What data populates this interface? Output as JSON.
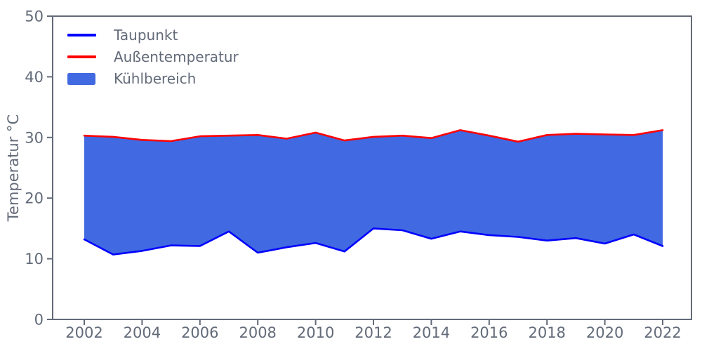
{
  "chart_data": {
    "type": "line",
    "title": "",
    "xlabel": "",
    "ylabel": "Temperatur °C",
    "x": [
      2002,
      2003,
      2004,
      2005,
      2006,
      2007,
      2008,
      2009,
      2010,
      2011,
      2012,
      2013,
      2014,
      2015,
      2016,
      2017,
      2018,
      2019,
      2020,
      2021,
      2022
    ],
    "series": [
      {
        "name": "Taupunkt",
        "color": "#0000ff",
        "values": [
          13.2,
          10.7,
          11.3,
          12.2,
          12.1,
          14.5,
          11.0,
          11.9,
          12.6,
          11.2,
          15.0,
          14.7,
          13.3,
          14.5,
          13.9,
          13.6,
          13.0,
          13.4,
          12.5,
          14.0,
          12.1
        ]
      },
      {
        "name": "Außentemperatur",
        "color": "#ff0000",
        "values": [
          30.3,
          30.1,
          29.6,
          29.4,
          30.2,
          30.3,
          30.4,
          29.8,
          30.8,
          29.5,
          30.1,
          30.3,
          29.9,
          31.2,
          30.3,
          29.3,
          30.4,
          30.6,
          30.5,
          30.4,
          31.2
        ]
      }
    ],
    "area": {
      "name": "Kühlbereich",
      "color": "#4169e1",
      "between": [
        "Taupunkt",
        "Außentemperatur"
      ]
    },
    "ylim": [
      0,
      50
    ],
    "xlim": [
      2001,
      2023
    ],
    "yticks": [
      "0",
      "10",
      "20",
      "30",
      "40",
      "50"
    ],
    "ytick_values": [
      0,
      10,
      20,
      30,
      40,
      50
    ],
    "xticks": [
      "2002",
      "2004",
      "2006",
      "2008",
      "2010",
      "2012",
      "2014",
      "2016",
      "2018",
      "2020",
      "2022"
    ],
    "xtick_values": [
      2002,
      2004,
      2006,
      2008,
      2010,
      2012,
      2014,
      2016,
      2018,
      2020,
      2022
    ],
    "grid": false,
    "axis_color": "#636b79",
    "background_color": "#ffffff",
    "legend": {
      "position": "upper left",
      "entries": [
        "Taupunkt",
        "Außentemperatur",
        "Kühlbereich"
      ]
    }
  }
}
